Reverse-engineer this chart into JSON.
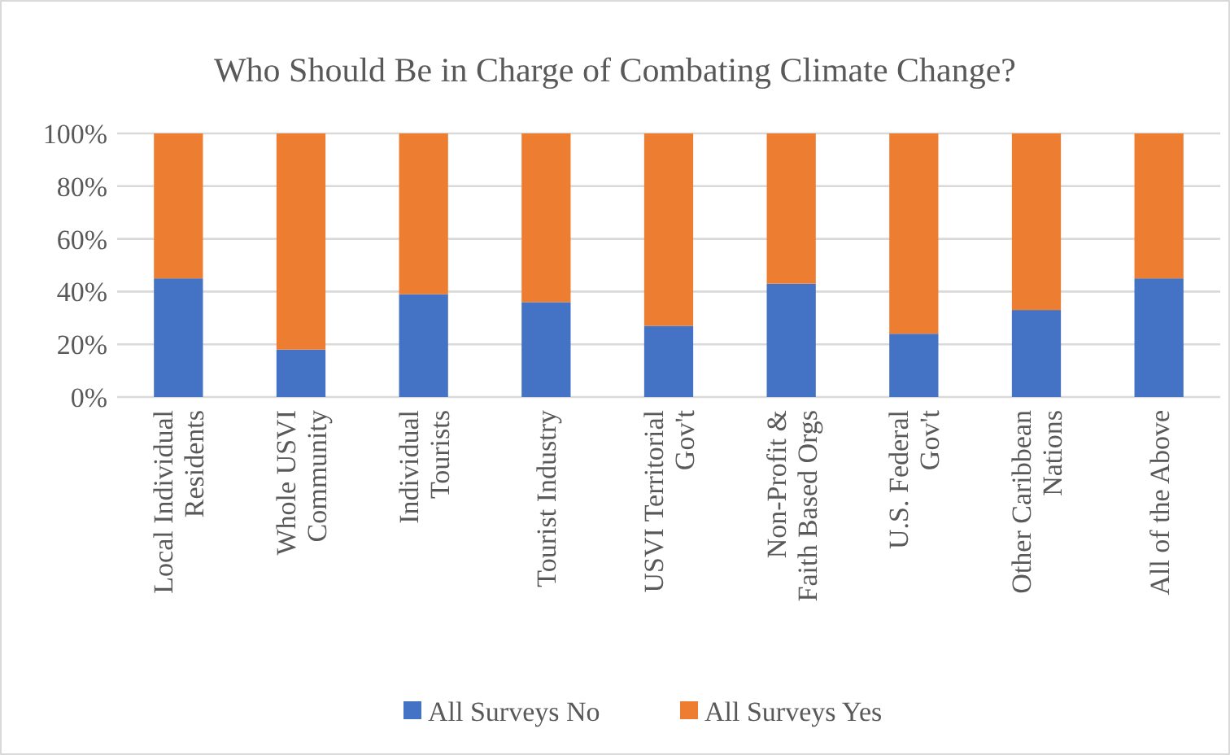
{
  "chart_data": {
    "type": "bar",
    "title": "Who Should Be in Charge of Combating Climate Change?",
    "categories": [
      "Local Individual Residents",
      "Whole USVI Community",
      "Individual Tourists",
      "Tourist Industry",
      "USVI Territorial Gov't",
      "Non-Profit & Faith Based Orgs",
      "U.S. Federal Gov't",
      "Other Caribbean Nations",
      "All of the Above"
    ],
    "series": [
      {
        "name": "All Surveys No",
        "color": "#4472c4",
        "values": [
          45,
          18,
          39,
          36,
          27,
          43,
          24,
          33,
          45
        ]
      },
      {
        "name": "All Surveys Yes",
        "color": "#ed7d31",
        "values": [
          55,
          82,
          61,
          64,
          73,
          57,
          76,
          67,
          55
        ]
      }
    ],
    "stacked": true,
    "ylim": [
      0,
      100
    ],
    "yticks": [
      {
        "value": 0,
        "label": "0%"
      },
      {
        "value": 20,
        "label": "20%"
      },
      {
        "value": 40,
        "label": "40%"
      },
      {
        "value": 60,
        "label": "60%"
      },
      {
        "value": 80,
        "label": "80%"
      },
      {
        "value": 100,
        "label": "100%"
      }
    ],
    "grid": "y",
    "legend": "bottom"
  }
}
